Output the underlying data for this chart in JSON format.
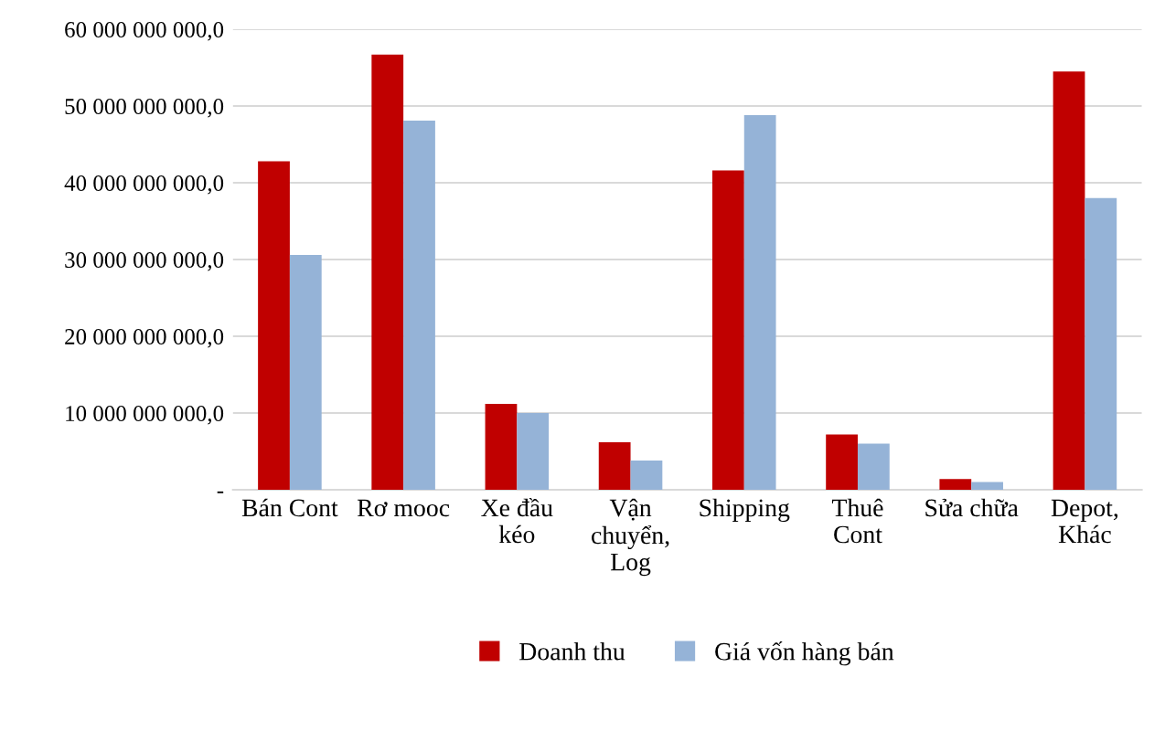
{
  "chart_data": {
    "type": "bar",
    "categories": [
      "Bán Cont",
      "Rơ mooc",
      "Xe đầu\nkéo",
      "Vận\nchuyển,\nLog",
      "Shipping",
      "Thuê\nCont",
      "Sửa chữa",
      "Depot,\nKhác"
    ],
    "series": [
      {
        "name": "Doanh thu",
        "color": "#c00000",
        "values": [
          42800000000,
          56700000000,
          11200000000,
          6200000000,
          41600000000,
          7200000000,
          1400000000,
          54500000000
        ]
      },
      {
        "name": "Giá vốn hàng bán",
        "color": "#95b3d7",
        "values": [
          30600000000,
          48100000000,
          10000000000,
          3800000000,
          48800000000,
          6000000000,
          1000000000,
          38000000000
        ]
      }
    ],
    "ylim": [
      0,
      60000000000
    ],
    "yticks": [
      {
        "value": 0,
        "label": "-"
      },
      {
        "value": 10000000000,
        "label": "10 000 000 000,0"
      },
      {
        "value": 20000000000,
        "label": "20 000 000 000,0"
      },
      {
        "value": 30000000000,
        "label": "30 000 000 000,0"
      },
      {
        "value": 40000000000,
        "label": "40 000 000 000,0"
      },
      {
        "value": 50000000000,
        "label": "50 000 000 000,0"
      },
      {
        "value": 60000000000,
        "label": "60 000 000 000,0"
      }
    ],
    "grid": "y",
    "legend": "bottom"
  }
}
